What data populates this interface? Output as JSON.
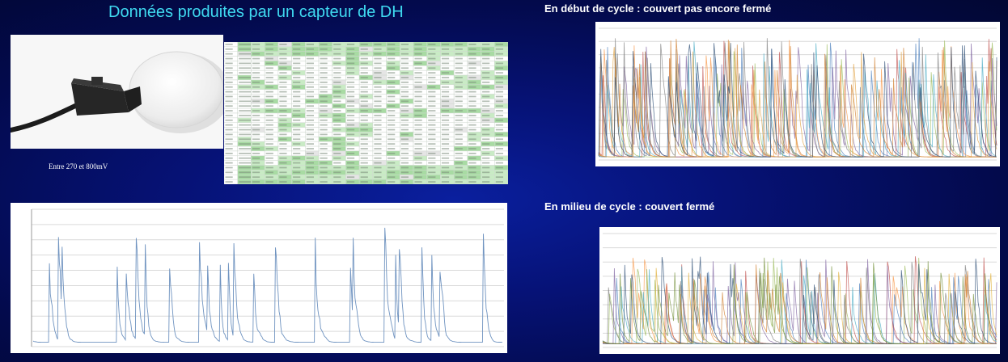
{
  "slide": {
    "title": "Données produites par un capteur de DH",
    "caption": "Entre 270 et 800mV",
    "heading_top": "En début de cycle : couvert pas encore fermé",
    "heading_middle": "En milieu de cycle : couvert fermé"
  },
  "colors": {
    "title": "#3fd9f0",
    "background": "#061276",
    "single_trace": "#6f93c0",
    "spreadsheet_highlight": "#a8dba3"
  },
  "icons": {
    "sensor_photo": "leaf-wetness-sensor-image"
  }
}
